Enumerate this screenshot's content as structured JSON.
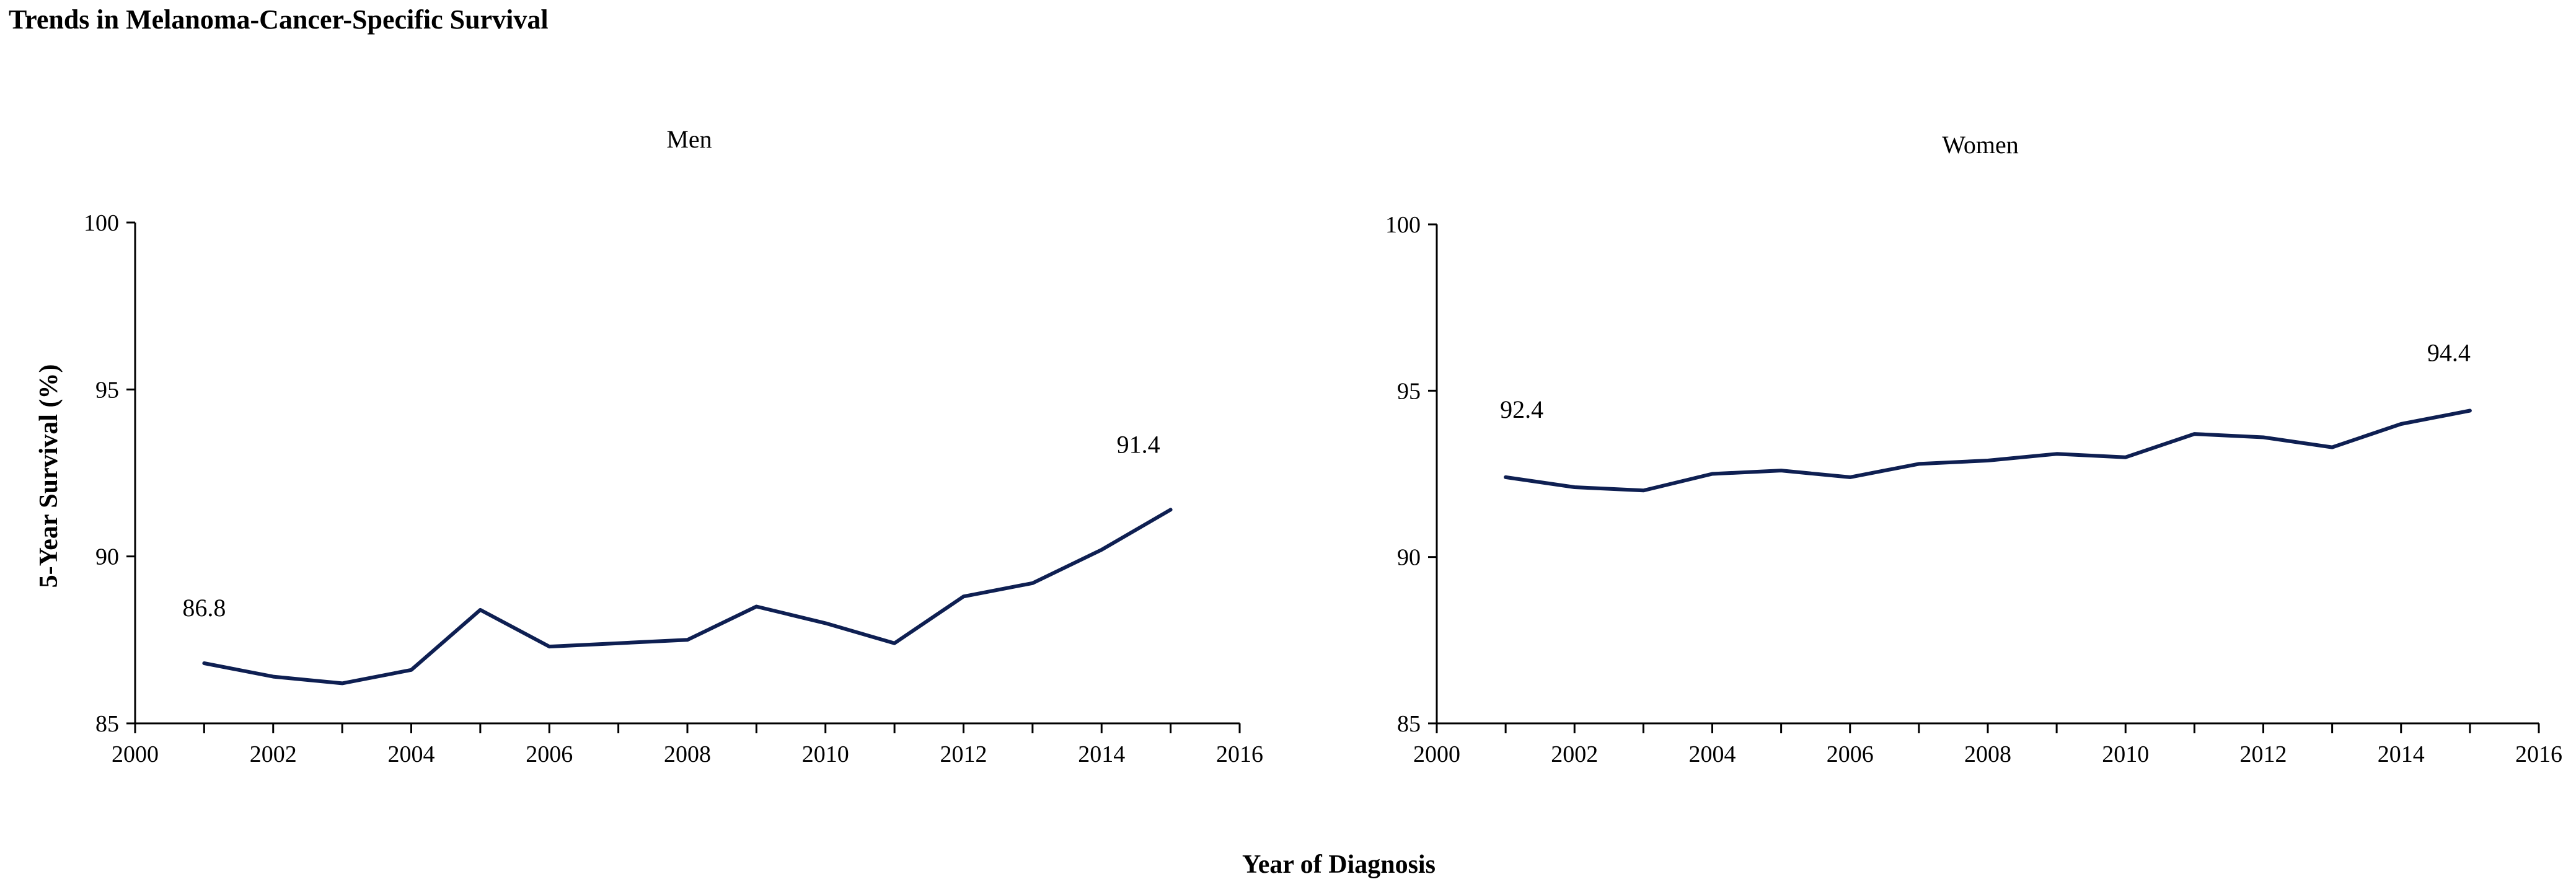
{
  "figure": {
    "title": "Trends in Melanoma-Cancer-Specific Survival",
    "xlabel": "Year of Diagnosis",
    "ylabel": "5-Year Survival (%)"
  },
  "colors": {
    "line": "#0e1f52",
    "axis": "#000000",
    "background": "#ffffff"
  },
  "chart_data": [
    {
      "type": "line",
      "title": "Men",
      "xlabel": "Year of Diagnosis",
      "ylabel": "5-Year Survival (%)",
      "xlim": [
        2000,
        2016
      ],
      "ylim": [
        85,
        100
      ],
      "xticks": [
        2000,
        2002,
        2004,
        2006,
        2008,
        2010,
        2012,
        2014,
        2016
      ],
      "yticks": [
        85,
        90,
        95,
        100
      ],
      "xticks_minor": [
        2001,
        2003,
        2005,
        2007,
        2009,
        2011,
        2013,
        2015
      ],
      "x": [
        2001,
        2002,
        2003,
        2004,
        2005,
        2006,
        2007,
        2008,
        2009,
        2010,
        2011,
        2012,
        2013,
        2014,
        2015
      ],
      "series": [
        {
          "name": "Men",
          "values": [
            86.8,
            86.4,
            86.2,
            86.6,
            88.4,
            87.3,
            87.4,
            87.5,
            88.5,
            88.0,
            87.4,
            88.8,
            89.2,
            90.2,
            91.4
          ]
        }
      ],
      "annotations": [
        {
          "text": "86.8",
          "x": 2001,
          "y": 86.8
        },
        {
          "text": "91.4",
          "x": 2015,
          "y": 91.4
        }
      ]
    },
    {
      "type": "line",
      "title": "Women",
      "xlabel": "Year of Diagnosis",
      "ylabel": "5-Year Survival (%)",
      "xlim": [
        2000,
        2016
      ],
      "ylim": [
        85,
        100
      ],
      "xticks": [
        2000,
        2002,
        2004,
        2006,
        2008,
        2010,
        2012,
        2014,
        2016
      ],
      "yticks": [
        85,
        90,
        95,
        100
      ],
      "xticks_minor": [
        2001,
        2003,
        2005,
        2007,
        2009,
        2011,
        2013,
        2015
      ],
      "x": [
        2001,
        2002,
        2003,
        2004,
        2005,
        2006,
        2007,
        2008,
        2009,
        2010,
        2011,
        2012,
        2013,
        2014,
        2015
      ],
      "series": [
        {
          "name": "Women",
          "values": [
            92.4,
            92.1,
            92.0,
            92.5,
            92.6,
            92.4,
            92.8,
            92.9,
            93.1,
            93.0,
            93.7,
            93.6,
            93.3,
            94.0,
            94.4
          ]
        }
      ],
      "annotations": [
        {
          "text": "92.4",
          "x": 2001,
          "y": 92.4
        },
        {
          "text": "94.4",
          "x": 2015,
          "y": 94.4
        }
      ]
    }
  ]
}
